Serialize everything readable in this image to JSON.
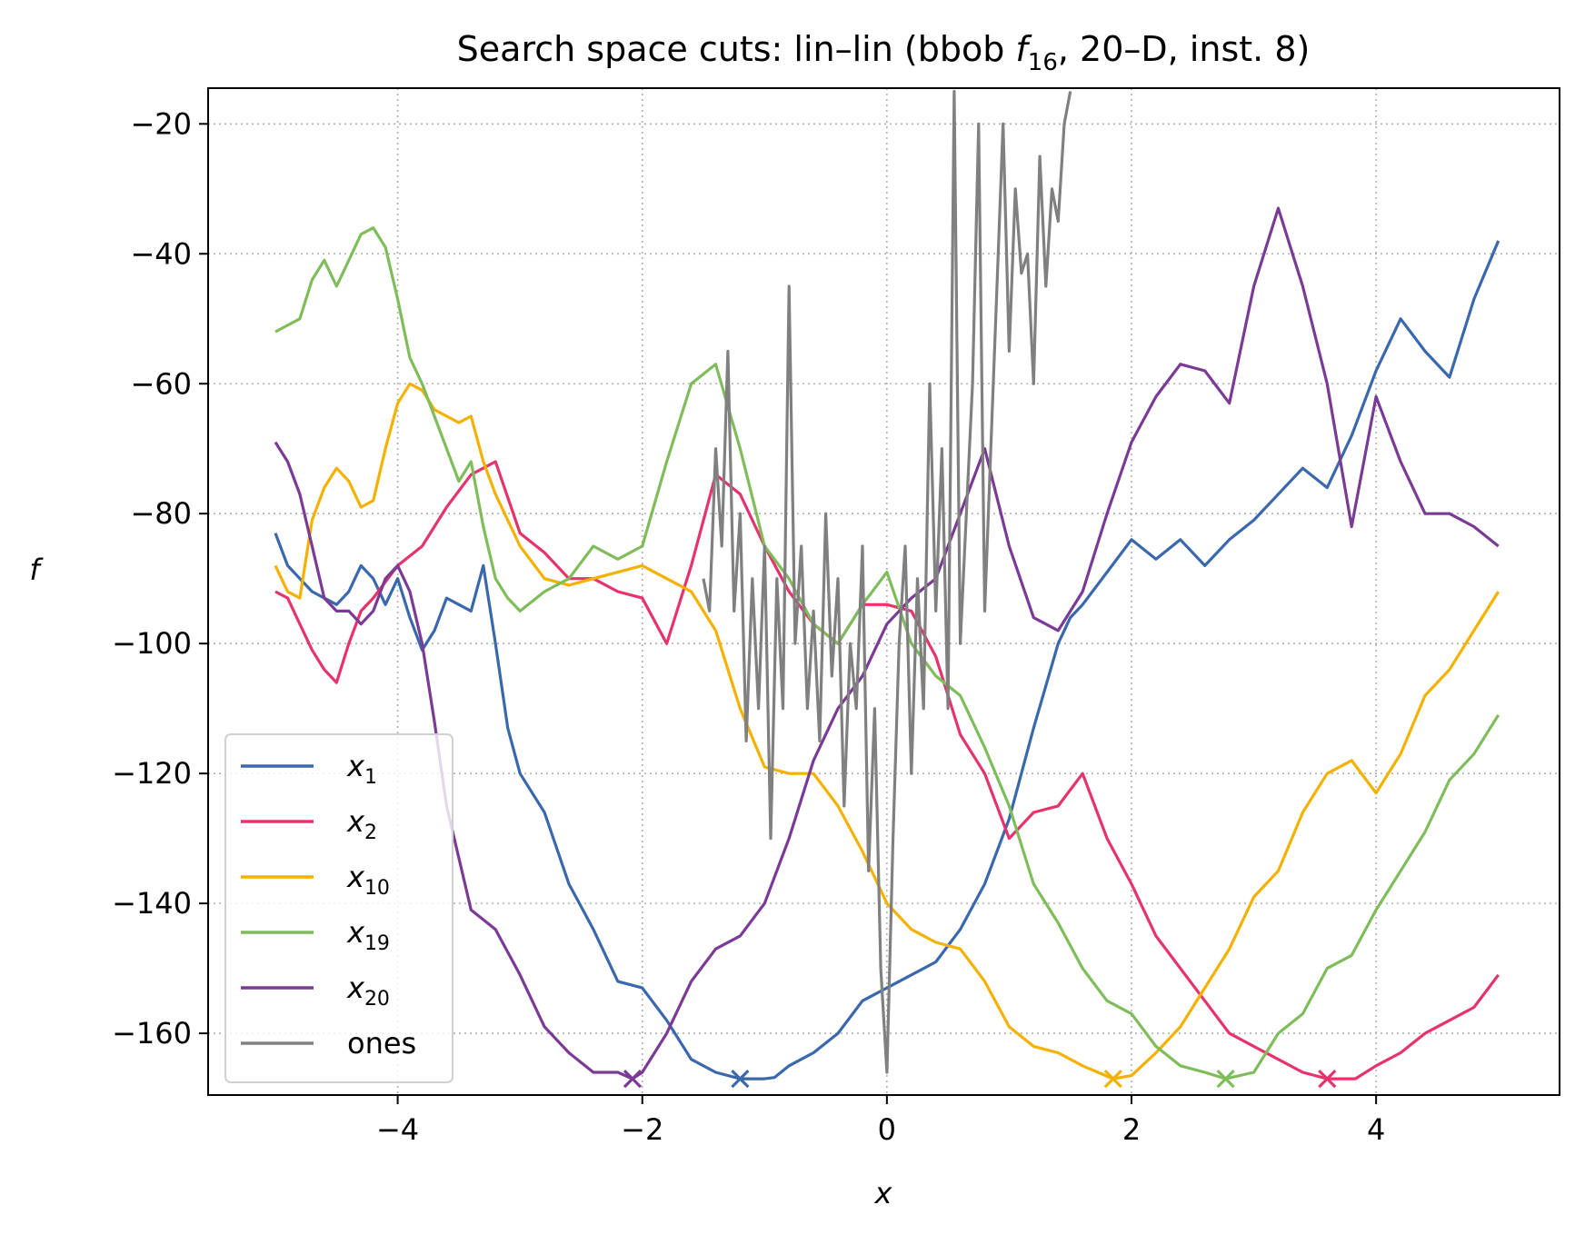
{
  "chart_data": {
    "type": "line",
    "title": "Search space cuts: lin–lin (bbob ",
    "title_func": "f",
    "title_func_sub": "16",
    "title_suffix": ", 20–D, inst. 8)",
    "xlabel": "x",
    "ylabel": "f",
    "xlim": [
      -5.55,
      5.5
    ],
    "ylim": [
      -169.5,
      -14.5
    ],
    "xticks": [
      -4,
      -2,
      0,
      2,
      4
    ],
    "xtick_labels": [
      "−4",
      "−2",
      "0",
      "2",
      "4"
    ],
    "yticks": [
      -20,
      -40,
      -60,
      -80,
      -100,
      -120,
      -140,
      -160
    ],
    "ytick_labels": [
      "−20",
      "−40",
      "−60",
      "−80",
      "−100",
      "−120",
      "−140",
      "−160"
    ],
    "grid": true,
    "legend_position": "lower-left",
    "series": [
      {
        "name": "x",
        "sub": "1",
        "color": "#3a68ad",
        "x": [
          -5.0,
          -4.9,
          -4.8,
          -4.7,
          -4.6,
          -4.5,
          -4.4,
          -4.3,
          -4.2,
          -4.1,
          -4.0,
          -3.9,
          -3.8,
          -3.7,
          -3.6,
          -3.5,
          -3.4,
          -3.3,
          -3.2,
          -3.1,
          -3.0,
          -2.8,
          -2.6,
          -2.4,
          -2.2,
          -2.0,
          -1.8,
          -1.6,
          -1.4,
          -1.2,
          -1.0,
          -0.92,
          -0.8,
          -0.6,
          -0.4,
          -0.2,
          0.0,
          0.2,
          0.4,
          0.6,
          0.8,
          1.0,
          1.2,
          1.4,
          1.5,
          1.6,
          1.8,
          2.0,
          2.2,
          2.4,
          2.6,
          2.8,
          3.0,
          3.2,
          3.4,
          3.6,
          3.8,
          4.0,
          4.2,
          4.4,
          4.6,
          4.8,
          5.0
        ],
        "y": [
          -83,
          -88,
          -90,
          -92,
          -93,
          -94,
          -92,
          -88,
          -90,
          -94,
          -90,
          -96,
          -101,
          -98,
          -93,
          -94,
          -95,
          -88,
          -100,
          -113,
          -120,
          -126,
          -137,
          -144,
          -152,
          -153,
          -158,
          -164,
          -166,
          -167,
          -167,
          -166.8,
          -165,
          -163,
          -160,
          -155,
          -153,
          -151,
          -149,
          -144,
          -137,
          -127,
          -113,
          -100,
          -96,
          -94,
          -89,
          -84,
          -87,
          -84,
          -88,
          -84,
          -81,
          -77,
          -73,
          -76,
          -68,
          -58,
          -50,
          -55,
          -59,
          -47,
          -38
        ]
      },
      {
        "name": "x",
        "sub": "2",
        "color": "#e6336b",
        "x": [
          -5.0,
          -4.9,
          -4.8,
          -4.7,
          -4.6,
          -4.5,
          -4.4,
          -4.3,
          -4.2,
          -4.0,
          -3.8,
          -3.6,
          -3.4,
          -3.2,
          -3.0,
          -2.8,
          -2.6,
          -2.4,
          -2.2,
          -2.0,
          -1.8,
          -1.6,
          -1.4,
          -1.2,
          -1.0,
          -0.8,
          -0.6,
          -0.4,
          -0.2,
          0.0,
          0.2,
          0.4,
          0.6,
          0.8,
          1.0,
          1.2,
          1.4,
          1.6,
          1.8,
          2.0,
          2.2,
          2.4,
          2.6,
          2.8,
          3.0,
          3.2,
          3.4,
          3.6,
          3.83,
          4.0,
          4.2,
          4.4,
          4.6,
          4.8,
          5.0
        ],
        "y": [
          -92,
          -93,
          -97,
          -101,
          -104,
          -106,
          -100,
          -95,
          -93,
          -88,
          -85,
          -79,
          -74,
          -72,
          -83,
          -86,
          -90,
          -90,
          -92,
          -93,
          -100,
          -88,
          -74,
          -77,
          -85,
          -92,
          -97,
          -100,
          -94,
          -94,
          -95,
          -102,
          -114,
          -120,
          -130,
          -126,
          -125,
          -120,
          -130,
          -137,
          -145,
          -150,
          -155,
          -160,
          -162,
          -164,
          -166,
          -167,
          -167,
          -165,
          -163,
          -160,
          -158,
          -156,
          -151
        ]
      },
      {
        "name": "x",
        "sub": "10",
        "color": "#f5b100",
        "x": [
          -5.0,
          -4.9,
          -4.8,
          -4.7,
          -4.6,
          -4.5,
          -4.4,
          -4.3,
          -4.2,
          -4.1,
          -4.0,
          -3.9,
          -3.8,
          -3.7,
          -3.6,
          -3.5,
          -3.4,
          -3.3,
          -3.2,
          -3.0,
          -2.8,
          -2.6,
          -2.4,
          -2.2,
          -2.0,
          -1.8,
          -1.6,
          -1.4,
          -1.2,
          -1.0,
          -0.8,
          -0.6,
          -0.4,
          -0.2,
          0.0,
          0.2,
          0.4,
          0.6,
          0.8,
          1.0,
          1.2,
          1.4,
          1.6,
          1.85,
          2.0,
          2.2,
          2.4,
          2.6,
          2.8,
          3.0,
          3.2,
          3.4,
          3.6,
          3.8,
          4.0,
          4.2,
          4.4,
          4.6,
          4.8,
          5.0
        ],
        "y": [
          -88,
          -92,
          -93,
          -81,
          -76,
          -73,
          -75,
          -79,
          -78,
          -70,
          -63,
          -60,
          -61,
          -64,
          -65,
          -66,
          -65,
          -72,
          -77,
          -85,
          -90,
          -91,
          -90,
          -89,
          -88,
          -90,
          -92,
          -98,
          -110,
          -119,
          -120,
          -120,
          -125,
          -132,
          -140,
          -144,
          -146,
          -147,
          -152,
          -159,
          -162,
          -163,
          -165,
          -167,
          -166.5,
          -163,
          -159,
          -153,
          -147,
          -139,
          -135,
          -126,
          -120,
          -118,
          -123,
          -117,
          -108,
          -104,
          -98,
          -92
        ]
      },
      {
        "name": "x",
        "sub": "19",
        "color": "#7fbd5a",
        "x": [
          -5.0,
          -4.9,
          -4.8,
          -4.7,
          -4.6,
          -4.5,
          -4.4,
          -4.3,
          -4.2,
          -4.1,
          -4.0,
          -3.9,
          -3.8,
          -3.7,
          -3.6,
          -3.5,
          -3.4,
          -3.3,
          -3.2,
          -3.1,
          -3.0,
          -2.8,
          -2.6,
          -2.4,
          -2.2,
          -2.0,
          -1.8,
          -1.6,
          -1.4,
          -1.2,
          -1.0,
          -0.8,
          -0.6,
          -0.4,
          -0.2,
          0.0,
          0.2,
          0.4,
          0.6,
          0.8,
          1.0,
          1.2,
          1.4,
          1.6,
          1.8,
          2.0,
          2.2,
          2.4,
          2.6,
          2.77,
          3.0,
          3.2,
          3.4,
          3.6,
          3.8,
          4.0,
          4.2,
          4.4,
          4.6,
          4.8,
          5.0
        ],
        "y": [
          -52,
          -51,
          -50,
          -44,
          -41,
          -45,
          -41,
          -37,
          -36,
          -39,
          -47,
          -56,
          -60,
          -65,
          -70,
          -75,
          -72,
          -82,
          -90,
          -93,
          -95,
          -92,
          -90,
          -85,
          -87,
          -85,
          -72,
          -60,
          -57,
          -70,
          -85,
          -90,
          -97,
          -100,
          -94,
          -89,
          -100,
          -105,
          -108,
          -116,
          -125,
          -137,
          -143,
          -150,
          -155,
          -157,
          -162,
          -165,
          -166,
          -167,
          -166,
          -160,
          -157,
          -150,
          -148,
          -141,
          -135,
          -129,
          -121,
          -117,
          -111
        ]
      },
      {
        "name": "x",
        "sub": "20",
        "color": "#7b3a96",
        "x": [
          -5.0,
          -4.9,
          -4.8,
          -4.7,
          -4.6,
          -4.5,
          -4.4,
          -4.3,
          -4.2,
          -4.1,
          -4.0,
          -3.9,
          -3.8,
          -3.7,
          -3.6,
          -3.5,
          -3.4,
          -3.2,
          -3.0,
          -2.8,
          -2.6,
          -2.4,
          -2.2,
          -2.08,
          -2.0,
          -1.8,
          -1.6,
          -1.4,
          -1.2,
          -1.0,
          -0.8,
          -0.6,
          -0.4,
          -0.2,
          0.0,
          0.2,
          0.4,
          0.6,
          0.8,
          1.0,
          1.2,
          1.4,
          1.6,
          1.8,
          2.0,
          2.2,
          2.4,
          2.6,
          2.8,
          3.0,
          3.2,
          3.4,
          3.6,
          3.8,
          4.0,
          4.2,
          4.4,
          4.6,
          4.8,
          5.0
        ],
        "y": [
          -69,
          -72,
          -77,
          -85,
          -93,
          -95,
          -95,
          -97,
          -95,
          -90,
          -88,
          -92,
          -100,
          -112,
          -125,
          -133,
          -141,
          -144,
          -151,
          -159,
          -163,
          -166,
          -166,
          -167,
          -166,
          -160,
          -152,
          -147,
          -145,
          -140,
          -130,
          -118,
          -110,
          -105,
          -97,
          -93,
          -90,
          -80,
          -70,
          -85,
          -96,
          -98,
          -92,
          -80,
          -69,
          -62,
          -57,
          -58,
          -63,
          -45,
          -33,
          -45,
          -60,
          -82,
          -62,
          -72,
          -80,
          -80,
          -82,
          -85
        ]
      },
      {
        "name": "ones",
        "color": "#808080",
        "x": [
          -1.5,
          -1.45,
          -1.4,
          -1.35,
          -1.3,
          -1.25,
          -1.2,
          -1.15,
          -1.1,
          -1.05,
          -1.0,
          -0.95,
          -0.9,
          -0.85,
          -0.8,
          -0.75,
          -0.7,
          -0.65,
          -0.6,
          -0.55,
          -0.5,
          -0.45,
          -0.4,
          -0.35,
          -0.3,
          -0.25,
          -0.2,
          -0.15,
          -0.1,
          -0.05,
          0.0,
          0.05,
          0.1,
          0.15,
          0.2,
          0.25,
          0.3,
          0.35,
          0.4,
          0.45,
          0.5,
          0.55,
          0.6,
          0.65,
          0.7,
          0.75,
          0.8,
          0.85,
          0.9,
          0.95,
          1.0,
          1.05,
          1.1,
          1.15,
          1.2,
          1.25,
          1.3,
          1.35,
          1.4,
          1.45,
          1.5
        ],
        "y": [
          -90,
          -95,
          -70,
          -85,
          -55,
          -95,
          -80,
          -115,
          -90,
          -110,
          -85,
          -130,
          -90,
          -110,
          -45,
          -100,
          -85,
          -110,
          -95,
          -115,
          -80,
          -105,
          -90,
          -125,
          -100,
          -110,
          -85,
          -135,
          -110,
          -150,
          -166,
          -130,
          -100,
          -85,
          -120,
          -90,
          -110,
          -60,
          -95,
          -70,
          -110,
          -15,
          -100,
          -80,
          -60,
          -20,
          -95,
          -70,
          -45,
          -20,
          -55,
          -30,
          -43,
          -40,
          -60,
          -25,
          -45,
          -30,
          -35,
          -20,
          -15
        ]
      }
    ]
  }
}
